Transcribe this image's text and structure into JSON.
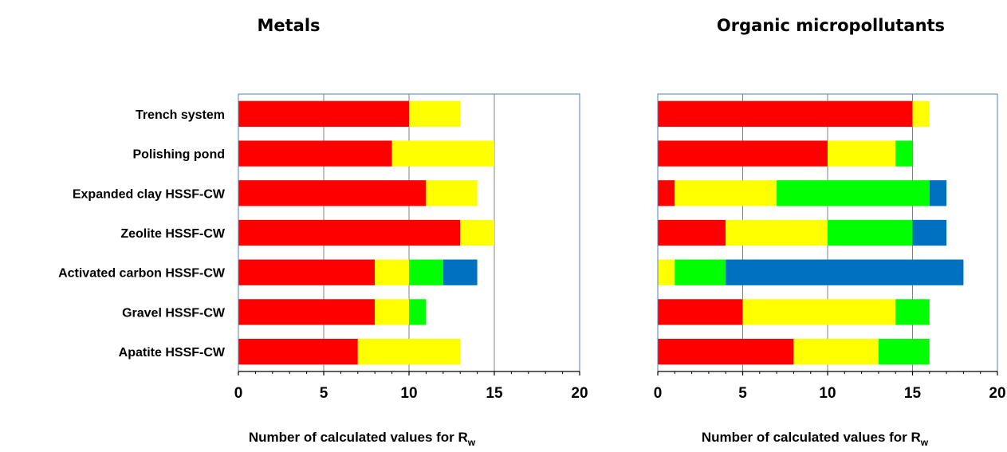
{
  "chart_data": [
    {
      "type": "bar",
      "orientation": "horizontal",
      "stacked": true,
      "title": "Metals",
      "xlabel": "Number of calculated values for R",
      "xlabel_subscript": "w",
      "xlim": [
        0,
        20
      ],
      "xticks": [
        0,
        5,
        10,
        15,
        20
      ],
      "grid": true,
      "categories": [
        "Trench system",
        "Polishing pond",
        "Expanded clay HSSF-CW",
        "Zeolite HSSF-CW",
        "Activated carbon HSSF-CW",
        "Gravel HSSF-CW",
        "Apatite HSSF-CW"
      ],
      "series": [
        {
          "color": "#ff0000",
          "values": [
            10,
            9,
            11,
            13,
            8,
            8,
            7
          ]
        },
        {
          "color": "#ffff00",
          "values": [
            3,
            6,
            3,
            2,
            2,
            2,
            6
          ]
        },
        {
          "color": "#00ff00",
          "values": [
            0,
            0,
            0,
            0,
            2,
            1,
            0
          ]
        },
        {
          "color": "#0070c0",
          "values": [
            0,
            0,
            0,
            0,
            2,
            0,
            0
          ]
        }
      ]
    },
    {
      "type": "bar",
      "orientation": "horizontal",
      "stacked": true,
      "title": "Organic micropollutants",
      "xlabel": "Number of calculated values for R",
      "xlabel_subscript": "w",
      "xlim": [
        0,
        20
      ],
      "xticks": [
        0,
        5,
        10,
        15,
        20
      ],
      "grid": true,
      "categories": [
        "Trench system",
        "Polishing pond",
        "Expanded clay HSSF-CW",
        "Zeolite HSSF-CW",
        "Activated carbon HSSF-CW",
        "Gravel HSSF-CW",
        "Apatite HSSF-CW"
      ],
      "series": [
        {
          "color": "#ff0000",
          "values": [
            15,
            10,
            1,
            4,
            0,
            5,
            8
          ]
        },
        {
          "color": "#ffff00",
          "values": [
            1,
            4,
            6,
            6,
            1,
            9,
            5
          ]
        },
        {
          "color": "#00ff00",
          "values": [
            0,
            1,
            9,
            5,
            3,
            2,
            3
          ]
        },
        {
          "color": "#0070c0",
          "values": [
            0,
            0,
            1,
            2,
            14,
            0,
            0
          ]
        }
      ]
    }
  ]
}
